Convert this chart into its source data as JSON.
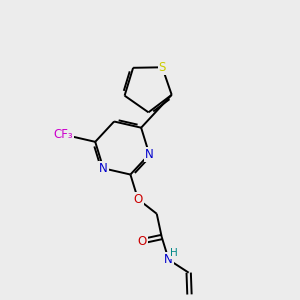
{
  "bg_color": "#ececec",
  "bond_color": "#000000",
  "atom_colors": {
    "N": "#0000cc",
    "O": "#cc0000",
    "S": "#cccc00",
    "F": "#cc00cc",
    "H": "#008888",
    "C": "#000000"
  },
  "figsize": [
    3.0,
    3.0
  ],
  "dpi": 100,
  "lw": 1.4,
  "fs": 8.5
}
